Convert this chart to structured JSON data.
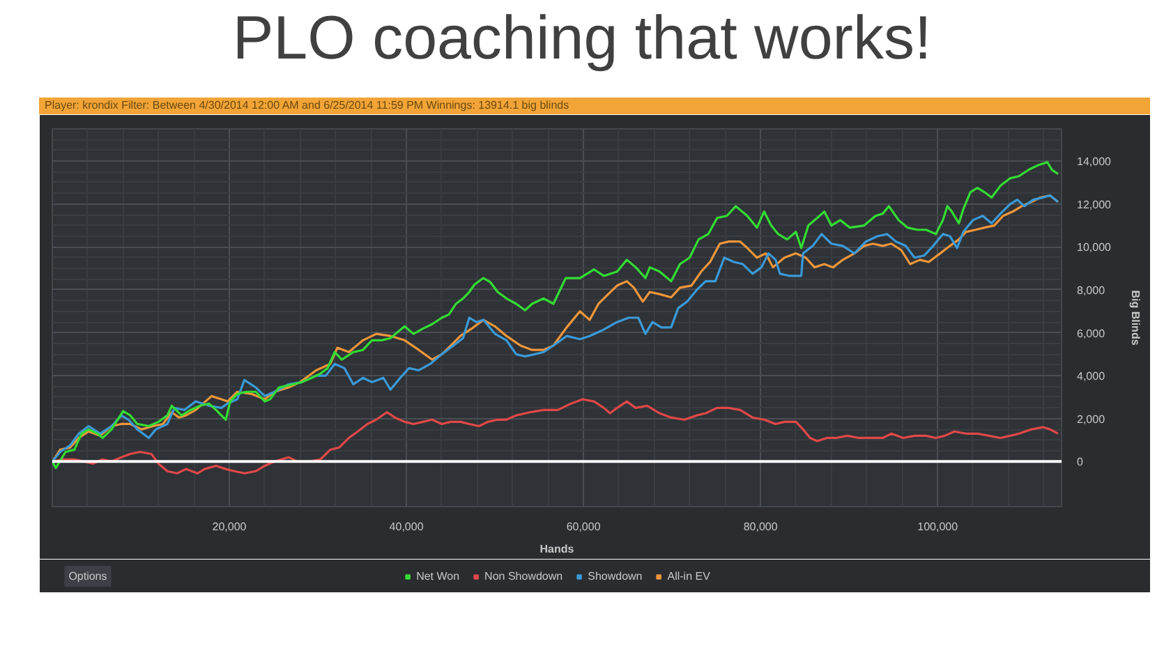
{
  "chart_data": {
    "type": "line",
    "title": "PLO coaching that works!",
    "subtitle": "Player: krondix Filter: Between 4/30/2014 12:00 AM and 6/25/2014 11:59 PM Winnings: 13914.1 big blinds",
    "xlabel": "Hands",
    "ylabel": "Big Blinds",
    "xlim": [
      0,
      114000
    ],
    "ylim": [
      -2100,
      15500
    ],
    "xticks": [
      {
        "value": 20000,
        "label": "20,000"
      },
      {
        "value": 40000,
        "label": "40,000"
      },
      {
        "value": 60000,
        "label": "60,000"
      },
      {
        "value": 80000,
        "label": "80,000"
      },
      {
        "value": 100000,
        "label": "100,000"
      }
    ],
    "yticks": [
      0,
      {
        "value": 2000,
        "label": "2,000"
      },
      {
        "value": 4000,
        "label": "4,000"
      },
      {
        "value": 6000,
        "label": "6,000"
      },
      {
        "value": 8000,
        "label": "8,000"
      },
      {
        "value": 10000,
        "label": "10,000"
      },
      {
        "value": 12000,
        "label": "12,000"
      },
      {
        "value": 14000,
        "label": "14,000"
      }
    ],
    "grid": true,
    "legend": "bottom",
    "ref_lines": [
      {
        "axis": "y",
        "value": 0,
        "color": "#ffffff"
      }
    ],
    "annotations": [
      "Options"
    ],
    "series": [
      {
        "name": "Net Won",
        "color": "#33dd33",
        "x": [
          0,
          400,
          1500,
          2500,
          3300,
          4100,
          5100,
          5700,
          6700,
          8000,
          8800,
          9600,
          10900,
          12000,
          13000,
          13500,
          14600,
          15600,
          16700,
          17700,
          18500,
          19100,
          19600,
          20100,
          20900,
          21900,
          23000,
          24000,
          24600,
          25600,
          27200,
          28200,
          29300,
          30300,
          31100,
          31900,
          32700,
          34000,
          35100,
          36100,
          37200,
          38200,
          39800,
          40800,
          41900,
          42900,
          44000,
          44800,
          45600,
          46400,
          47100,
          47700,
          48700,
          49500,
          50300,
          51300,
          52400,
          53400,
          54200,
          55500,
          56600,
          58000,
          59600,
          61200,
          62300,
          63800,
          64900,
          65900,
          67000,
          67500,
          68600,
          69900,
          70900,
          72000,
          73000,
          74100,
          75100,
          76200,
          77200,
          78500,
          79600,
          80400,
          81200,
          82000,
          83000,
          84000,
          84600,
          85400,
          86400,
          87200,
          88000,
          89000,
          90100,
          91700,
          93000,
          93800,
          94500,
          95600,
          96600,
          97700,
          98700,
          99800,
          100600,
          101100,
          101600,
          102400,
          102900,
          103700,
          104500,
          105300,
          106100,
          107100,
          108200,
          109200,
          110300,
          111300,
          112400,
          112900,
          113600
        ],
        "values": [
          0,
          -300,
          450,
          550,
          1300,
          1500,
          1300,
          1100,
          1500,
          2350,
          2150,
          1750,
          1650,
          1850,
          2150,
          2600,
          2150,
          2400,
          2600,
          2700,
          2400,
          2150,
          1950,
          2800,
          3150,
          3250,
          3250,
          2800,
          2900,
          3450,
          3600,
          3700,
          3900,
          4100,
          4350,
          5100,
          4750,
          5100,
          5200,
          5650,
          5650,
          5750,
          6300,
          5950,
          6200,
          6400,
          6700,
          6850,
          7350,
          7600,
          7900,
          8250,
          8550,
          8350,
          7900,
          7600,
          7350,
          7050,
          7350,
          7600,
          7350,
          8550,
          8550,
          8950,
          8650,
          8850,
          9400,
          9050,
          8550,
          9050,
          8850,
          8400,
          9200,
          9500,
          10350,
          10600,
          11350,
          11450,
          11900,
          11450,
          10900,
          11650,
          11000,
          10600,
          10350,
          10700,
          9950,
          11000,
          11350,
          11650,
          11000,
          11250,
          10900,
          11000,
          11450,
          11550,
          11900,
          11250,
          10900,
          10800,
          10800,
          10600,
          11250,
          11900,
          11650,
          11100,
          11750,
          12550,
          12750,
          12550,
          12300,
          12850,
          13200,
          13300,
          13600,
          13800,
          13950,
          13600,
          13400
        ]
      },
      {
        "name": "Non Showdown",
        "color": "#e04848",
        "x": [
          0,
          1200,
          2500,
          3600,
          4600,
          5700,
          6700,
          7800,
          8800,
          9900,
          11200,
          12000,
          13000,
          14100,
          15100,
          16400,
          17200,
          18500,
          19600,
          20600,
          21700,
          23000,
          24000,
          25100,
          26700,
          27700,
          29000,
          30300,
          31400,
          32400,
          33500,
          34500,
          35600,
          36600,
          37800,
          38700,
          39800,
          40800,
          41900,
          42900,
          44000,
          45000,
          46100,
          47100,
          48200,
          49200,
          50300,
          51300,
          52400,
          54000,
          55500,
          57100,
          58600,
          59900,
          61200,
          62300,
          63000,
          63800,
          64900,
          65900,
          67200,
          68600,
          69900,
          71400,
          72800,
          73800,
          75100,
          76400,
          77700,
          79100,
          80400,
          81700,
          82700,
          84000,
          84800,
          85600,
          86400,
          87500,
          88500,
          89800,
          91100,
          92400,
          93800,
          94800,
          96100,
          97400,
          98700,
          99800,
          100800,
          101900,
          103200,
          104500,
          105800,
          107100,
          108200,
          109200,
          110600,
          111900,
          112700,
          113600
        ],
        "values": [
          0,
          100,
          100,
          0,
          -100,
          100,
          0,
          200,
          350,
          450,
          350,
          -100,
          -450,
          -550,
          -350,
          -550,
          -350,
          -200,
          -350,
          -450,
          -550,
          -450,
          -200,
          0,
          200,
          0,
          0,
          100,
          550,
          650,
          1100,
          1400,
          1750,
          1950,
          2300,
          2050,
          1850,
          1750,
          1850,
          1950,
          1750,
          1850,
          1850,
          1750,
          1650,
          1850,
          1950,
          1950,
          2150,
          2300,
          2400,
          2400,
          2700,
          2900,
          2800,
          2500,
          2250,
          2500,
          2800,
          2500,
          2600,
          2250,
          2050,
          1950,
          2150,
          2250,
          2500,
          2500,
          2400,
          2050,
          1950,
          1750,
          1850,
          1850,
          1500,
          1100,
          950,
          1100,
          1100,
          1200,
          1100,
          1100,
          1100,
          1300,
          1100,
          1200,
          1200,
          1100,
          1200,
          1400,
          1300,
          1300,
          1200,
          1100,
          1200,
          1300,
          1500,
          1600,
          1500,
          1300
        ]
      },
      {
        "name": "Showdown",
        "color": "#3a9ad9",
        "x": [
          0,
          900,
          2000,
          3000,
          4100,
          5400,
          6700,
          7800,
          8600,
          9600,
          10900,
          11700,
          13000,
          13800,
          14900,
          16200,
          17700,
          19100,
          19800,
          20900,
          21700,
          23000,
          24000,
          25100,
          26700,
          28200,
          29800,
          30900,
          31900,
          33000,
          34000,
          35100,
          36100,
          37400,
          38200,
          39300,
          40300,
          41400,
          42700,
          44000,
          45300,
          46400,
          47100,
          47900,
          48700,
          50000,
          51300,
          52400,
          53400,
          54500,
          55500,
          56600,
          58100,
          59600,
          60700,
          62300,
          63800,
          65100,
          66200,
          67000,
          67800,
          68800,
          69900,
          70700,
          71700,
          72800,
          73800,
          74900,
          75900,
          77000,
          78000,
          79100,
          80100,
          80900,
          81700,
          82200,
          83300,
          84600,
          84800,
          85900,
          86900,
          88000,
          89300,
          90600,
          91900,
          93200,
          94300,
          95300,
          96400,
          97400,
          98500,
          99500,
          100600,
          101400,
          102200,
          102900,
          104000,
          105100,
          106100,
          107100,
          108200,
          109000,
          109800,
          110800,
          111900,
          112700,
          113600
        ],
        "values": [
          0,
          450,
          750,
          1300,
          1650,
          1300,
          1650,
          2150,
          1950,
          1500,
          1100,
          1500,
          1750,
          2500,
          2400,
          2800,
          2600,
          2500,
          2700,
          2900,
          3800,
          3450,
          3050,
          3250,
          3600,
          3700,
          4000,
          4000,
          4550,
          4350,
          3600,
          3900,
          3700,
          3900,
          3350,
          3900,
          4350,
          4250,
          4550,
          5000,
          5400,
          5750,
          6700,
          6500,
          6600,
          5950,
          5650,
          5000,
          4900,
          5000,
          5100,
          5400,
          5850,
          5700,
          5850,
          6150,
          6500,
          6700,
          6700,
          5950,
          6500,
          6250,
          6250,
          7150,
          7450,
          8000,
          8400,
          8400,
          9500,
          9300,
          9200,
          8750,
          9050,
          9700,
          9400,
          8750,
          8650,
          8650,
          9700,
          10050,
          10600,
          10150,
          10050,
          9700,
          10250,
          10500,
          10600,
          10250,
          10050,
          9500,
          9600,
          10050,
          10600,
          10500,
          9950,
          10700,
          11250,
          11450,
          11100,
          11550,
          12000,
          12200,
          11900,
          12200,
          12300,
          12400,
          12100
        ]
      },
      {
        "name": "All-in EV",
        "color": "#f0963a",
        "x": [
          0,
          900,
          2000,
          3000,
          4100,
          5400,
          6700,
          7800,
          8800,
          10100,
          11400,
          12500,
          13500,
          14300,
          15100,
          16200,
          18000,
          19100,
          19800,
          20900,
          22500,
          24000,
          25100,
          26700,
          28000,
          29800,
          31400,
          32200,
          33500,
          35100,
          36600,
          38200,
          39800,
          41400,
          42900,
          44000,
          45000,
          46100,
          47400,
          48700,
          50000,
          51300,
          52900,
          54200,
          55500,
          56600,
          58100,
          59600,
          60700,
          61700,
          62800,
          63800,
          64900,
          65700,
          66700,
          67500,
          68600,
          69900,
          70900,
          72200,
          73300,
          74300,
          75400,
          76400,
          77700,
          78500,
          79600,
          80600,
          81400,
          82700,
          84000,
          85100,
          86100,
          87200,
          88200,
          89300,
          90600,
          91700,
          92700,
          93800,
          94800,
          95900,
          96900,
          98000,
          99000,
          100300,
          101400,
          102400,
          103200,
          104300,
          105300,
          106400,
          107400,
          108500,
          109500,
          110600,
          111600,
          112700,
          113600
        ],
        "values": [
          0,
          550,
          650,
          1100,
          1400,
          1200,
          1650,
          1750,
          1750,
          1500,
          1650,
          1750,
          2300,
          2050,
          2150,
          2400,
          3050,
          2900,
          2800,
          3250,
          3150,
          2900,
          3250,
          3450,
          3700,
          4250,
          4550,
          5300,
          5100,
          5650,
          5950,
          5850,
          5650,
          5200,
          4750,
          5000,
          5400,
          5850,
          6200,
          6600,
          6300,
          5850,
          5400,
          5200,
          5200,
          5400,
          6250,
          7000,
          6600,
          7350,
          7800,
          8200,
          8400,
          8100,
          7450,
          7900,
          7800,
          7650,
          8100,
          8200,
          8850,
          9300,
          10150,
          10250,
          10250,
          9950,
          9500,
          9700,
          9050,
          9500,
          9700,
          9500,
          9050,
          9200,
          9050,
          9400,
          9700,
          10050,
          10150,
          10050,
          10150,
          9850,
          9200,
          9400,
          9300,
          9700,
          10050,
          10350,
          10700,
          10800,
          10900,
          11000,
          11450,
          11650,
          11900,
          12100,
          12300,
          12400,
          12100
        ]
      }
    ]
  }
}
